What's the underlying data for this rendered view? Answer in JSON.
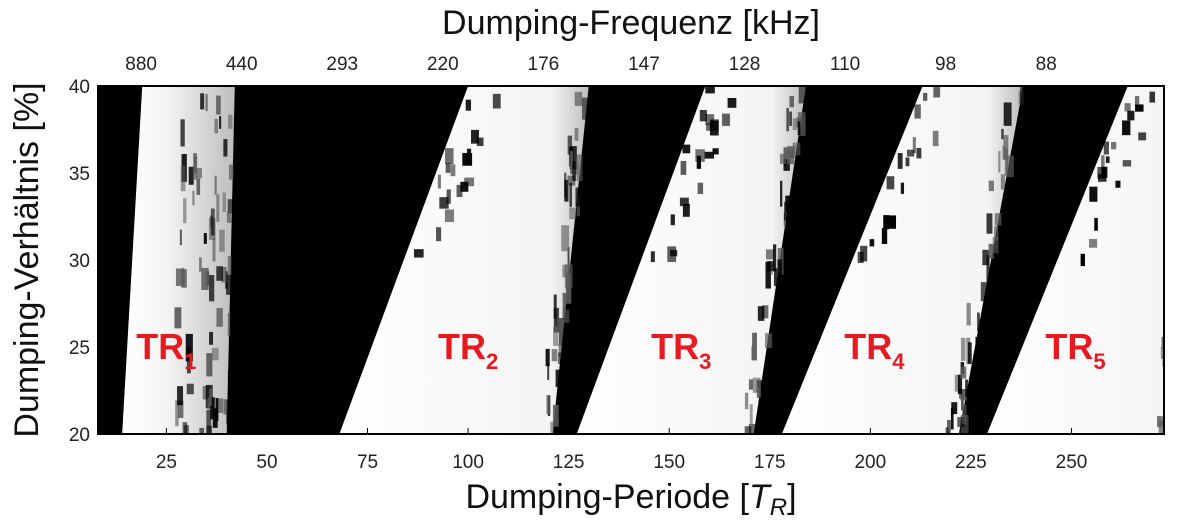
{
  "chart_data": {
    "type": "heatmap",
    "title": "",
    "xlabel": "Dumping-Periode [T_R]",
    "xlabel_parts": {
      "main": "Dumping-Periode [",
      "var": "T",
      "sub": "R",
      "end": "]"
    },
    "ylabel": "Dumping-Verhältnis [%]",
    "x2label": "Dumping-Frequenz [kHz]",
    "xlim": [
      8,
      273
    ],
    "ylim": [
      20,
      40
    ],
    "x_ticks": [
      25,
      50,
      75,
      100,
      125,
      150,
      175,
      200,
      225,
      250
    ],
    "x_tick_labels": [
      "25",
      "50",
      "75",
      "100",
      "125",
      "150",
      "175",
      "200",
      "225",
      "250"
    ],
    "y_ticks": [
      20,
      25,
      30,
      35,
      40
    ],
    "y_tick_labels": [
      "20",
      "25",
      "30",
      "35",
      "40"
    ],
    "top_ticks_at_period": [
      12.5,
      37.5,
      62.5,
      87.5,
      112.5,
      137.5,
      162.5,
      187.5,
      212.5,
      237.5
    ],
    "top_tick_labels": [
      "880",
      "440",
      "293",
      "220",
      "176",
      "147",
      "128",
      "110",
      "98",
      "88"
    ],
    "colormap": {
      "low": "#000000",
      "high": "#ffffff"
    },
    "regions": [
      {
        "main": "TR",
        "sub": "1",
        "x": 25,
        "y": 25,
        "color": "#e8191f"
      },
      {
        "main": "TR",
        "sub": "2",
        "x": 100,
        "y": 25,
        "color": "#e8191f"
      },
      {
        "main": "TR",
        "sub": "3",
        "x": 153,
        "y": 25,
        "color": "#e8191f"
      },
      {
        "main": "TR",
        "sub": "4",
        "x": 201,
        "y": 25,
        "color": "#e8191f"
      },
      {
        "main": "TR",
        "sub": "5",
        "x": 251,
        "y": 25,
        "color": "#e8191f"
      }
    ],
    "bands": [
      {
        "name": "TR1",
        "left_at_20": 14,
        "left_at_40": 19,
        "right_at_20": 40,
        "right_at_40": 42,
        "fade": 0.6
      },
      {
        "name": "TR2",
        "left_at_20": 68,
        "left_at_40": 100,
        "right_at_20": 121,
        "right_at_40": 130,
        "fade": 0.15
      },
      {
        "name": "TR3",
        "left_at_20": 127,
        "left_at_40": 159,
        "right_at_20": 171,
        "right_at_40": 184,
        "fade": 0.15
      },
      {
        "name": "TR4",
        "left_at_20": 178,
        "left_at_40": 213,
        "right_at_20": 222,
        "right_at_40": 238,
        "fade": 0.15
      },
      {
        "name": "TR5",
        "left_at_20": 229,
        "left_at_40": 264,
        "right_at_20": 273,
        "right_at_40": 285,
        "fade": 0.15
      }
    ]
  }
}
